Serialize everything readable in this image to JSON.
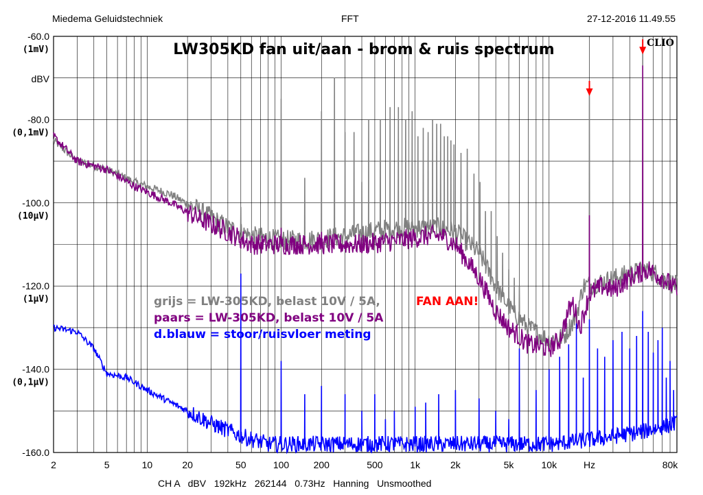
{
  "header": {
    "left": "Miedema Geluidstechniek",
    "center": "FFT",
    "right": "27-12-2016 11.49.55"
  },
  "footer": "CH A   dBV   192kHz   262144   0.73Hz   Hanning   Unsmoothed",
  "logo": "CLIO",
  "chart_data": {
    "type": "line",
    "title": "LW305KD fan uit/aan - brom & ruis spectrum",
    "x_scale": "log",
    "xlim": [
      2,
      90000
    ],
    "ylim": [
      -160,
      -60
    ],
    "ylabel": "dBV",
    "y_ticks": [
      {
        "value": -60,
        "label": "-60.0",
        "sub": "(1mV)"
      },
      {
        "value": -80,
        "label": "-80.0",
        "sub": "(0,1mV)"
      },
      {
        "value": -100,
        "label": "-100.0",
        "sub": "(10µV)"
      },
      {
        "value": -120,
        "label": "-120.0",
        "sub": "(1µV)"
      },
      {
        "value": -140,
        "label": "-140.0",
        "sub": "(0,1µV)"
      },
      {
        "value": -160,
        "label": "-160.0",
        "sub": ""
      }
    ],
    "x_ticks": [
      {
        "value": 2,
        "label": "2"
      },
      {
        "value": 5,
        "label": "5"
      },
      {
        "value": 10,
        "label": "10"
      },
      {
        "value": 20,
        "label": "20"
      },
      {
        "value": 50,
        "label": "50"
      },
      {
        "value": 100,
        "label": "100"
      },
      {
        "value": 200,
        "label": "200"
      },
      {
        "value": 500,
        "label": "500"
      },
      {
        "value": 1000,
        "label": "1k"
      },
      {
        "value": 2000,
        "label": "2k"
      },
      {
        "value": 5000,
        "label": "5k"
      },
      {
        "value": 10000,
        "label": "10k"
      },
      {
        "value": 20000,
        "label": "Hz"
      },
      {
        "value": 80000,
        "label": "80k"
      }
    ],
    "legend": [
      {
        "text": "grijs   = LW-305KD, belast 10V / 5A,",
        "extra": "FAN AAN!",
        "color": "#808080",
        "extra_color": "#ff0000"
      },
      {
        "text": "paars  = LW-305KD, belast 10V / 5A",
        "extra": "",
        "color": "#800080",
        "extra_color": ""
      },
      {
        "text": "d.blauw = stoor/ruisvloer meting",
        "extra": "",
        "color": "#0000ff",
        "extra_color": ""
      }
    ],
    "markers": [
      {
        "x": 20000,
        "y": -74,
        "color": "#ff0000"
      },
      {
        "x": 50000,
        "y": -64,
        "color": "#ff0000"
      }
    ],
    "series": [
      {
        "color": "#808080",
        "baseline": [
          [
            2,
            -85
          ],
          [
            3,
            -90
          ],
          [
            5,
            -92
          ],
          [
            8,
            -95
          ],
          [
            15,
            -98
          ],
          [
            25,
            -102
          ],
          [
            40,
            -106
          ],
          [
            60,
            -108
          ],
          [
            100,
            -109
          ],
          [
            150,
            -109
          ],
          [
            300,
            -108
          ],
          [
            700,
            -106
          ],
          [
            1500,
            -106
          ],
          [
            2000,
            -107
          ],
          [
            3000,
            -112
          ],
          [
            4000,
            -120
          ],
          [
            5000,
            -125
          ],
          [
            7000,
            -130
          ],
          [
            10000,
            -133
          ],
          [
            13000,
            -132
          ],
          [
            16000,
            -127
          ],
          [
            18000,
            -120
          ],
          [
            25000,
            -119
          ],
          [
            40000,
            -117
          ],
          [
            55000,
            -116
          ],
          [
            70000,
            -118
          ],
          [
            90000,
            -120
          ]
        ],
        "noise": 2.5,
        "spikes": [
          [
            50,
            -101
          ],
          [
            100,
            -75
          ],
          [
            150,
            -94
          ],
          [
            200,
            -78
          ],
          [
            250,
            -70
          ],
          [
            300,
            -83
          ],
          [
            350,
            -83
          ],
          [
            400,
            -95
          ],
          [
            450,
            -80
          ],
          [
            550,
            -80
          ],
          [
            650,
            -77
          ],
          [
            750,
            -77
          ],
          [
            850,
            -80
          ],
          [
            950,
            -78
          ],
          [
            1050,
            -84
          ],
          [
            1150,
            -82
          ],
          [
            1250,
            -83
          ],
          [
            1350,
            -80
          ],
          [
            1450,
            -81
          ],
          [
            1550,
            -81
          ],
          [
            1650,
            -84
          ],
          [
            1750,
            -84
          ],
          [
            1850,
            -85
          ],
          [
            1950,
            -86
          ],
          [
            2200,
            -88
          ],
          [
            2450,
            -87
          ],
          [
            2750,
            -93
          ],
          [
            3050,
            -95
          ],
          [
            3350,
            -102
          ],
          [
            3700,
            -102
          ],
          [
            4100,
            -108
          ],
          [
            4500,
            -112
          ],
          [
            5000,
            -116
          ],
          [
            5500,
            -118
          ],
          [
            6000,
            -120
          ],
          [
            20000,
            -73
          ],
          [
            50000,
            -64
          ]
        ],
        "spike_base_offset": 0
      },
      {
        "color": "#800080",
        "baseline": [
          [
            2,
            -84
          ],
          [
            3,
            -90
          ],
          [
            5,
            -92
          ],
          [
            8,
            -96
          ],
          [
            15,
            -100
          ],
          [
            25,
            -104
          ],
          [
            40,
            -107
          ],
          [
            60,
            -110
          ],
          [
            100,
            -110
          ],
          [
            200,
            -110
          ],
          [
            400,
            -110
          ],
          [
            800,
            -109
          ],
          [
            1200,
            -108
          ],
          [
            1600,
            -108
          ],
          [
            2000,
            -110
          ],
          [
            3000,
            -118
          ],
          [
            4000,
            -126
          ],
          [
            5000,
            -130
          ],
          [
            7000,
            -134
          ],
          [
            10000,
            -135
          ],
          [
            12000,
            -133
          ],
          [
            14000,
            -126
          ],
          [
            15000,
            -124
          ],
          [
            17000,
            -130
          ],
          [
            20000,
            -122
          ],
          [
            25000,
            -120
          ],
          [
            30000,
            -121
          ],
          [
            40000,
            -118
          ],
          [
            55000,
            -116
          ],
          [
            70000,
            -118
          ],
          [
            90000,
            -121
          ]
        ],
        "noise": 2.5,
        "spikes": [
          [
            50,
            -111
          ],
          [
            100,
            -106
          ],
          [
            150,
            -108
          ],
          [
            200,
            -107
          ],
          [
            20000,
            -103
          ],
          [
            50000,
            -67
          ]
        ],
        "spike_base_offset": 0
      },
      {
        "color": "#0000ff",
        "baseline": [
          [
            2,
            -130
          ],
          [
            3,
            -131
          ],
          [
            4,
            -135
          ],
          [
            5,
            -141
          ],
          [
            7,
            -142
          ],
          [
            10,
            -145
          ],
          [
            15,
            -148
          ],
          [
            20,
            -150
          ],
          [
            30,
            -153
          ],
          [
            50,
            -156
          ],
          [
            80,
            -158
          ],
          [
            150,
            -158
          ],
          [
            500,
            -158
          ],
          [
            2000,
            -158
          ],
          [
            10000,
            -158
          ],
          [
            20000,
            -157
          ],
          [
            50000,
            -155
          ],
          [
            90000,
            -153
          ]
        ],
        "noise": 2,
        "spikes": [
          [
            50,
            -117
          ],
          [
            100,
            -138
          ],
          [
            150,
            -146
          ],
          [
            200,
            -144
          ],
          [
            300,
            -146
          ],
          [
            400,
            -150
          ],
          [
            500,
            -146
          ],
          [
            600,
            -152
          ],
          [
            700,
            -150
          ],
          [
            1000,
            -149
          ],
          [
            1200,
            -148
          ],
          [
            1500,
            -146
          ],
          [
            2000,
            -145
          ],
          [
            3000,
            -147
          ],
          [
            4000,
            -150
          ],
          [
            5000,
            -152
          ],
          [
            6000,
            -135
          ],
          [
            8000,
            -145
          ],
          [
            10000,
            -140
          ],
          [
            12000,
            -137
          ],
          [
            14000,
            -134
          ],
          [
            16000,
            -129
          ],
          [
            18000,
            -142
          ],
          [
            20000,
            -128
          ],
          [
            23000,
            -135
          ],
          [
            26000,
            -137
          ],
          [
            30000,
            -133
          ],
          [
            35000,
            -131
          ],
          [
            40000,
            -135
          ],
          [
            45000,
            -132
          ],
          [
            50000,
            -126
          ],
          [
            55000,
            -131
          ],
          [
            60000,
            -136
          ],
          [
            65000,
            -133
          ],
          [
            70000,
            -130
          ],
          [
            75000,
            -142
          ],
          [
            80000,
            -138
          ],
          [
            85000,
            -145
          ]
        ],
        "spike_base_offset": 0
      }
    ]
  }
}
